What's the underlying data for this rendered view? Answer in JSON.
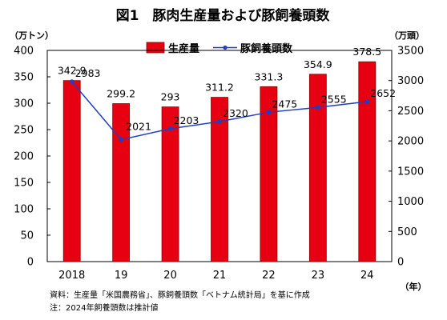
{
  "chart_data": {
    "type": "bar",
    "title": "図1　豚肉生産量および豚飼養頭数",
    "categories": [
      "2018",
      "19",
      "20",
      "21",
      "22",
      "23",
      "24"
    ],
    "series": [
      {
        "name": "生産量",
        "type": "bar",
        "axis": "left",
        "values": [
          342.9,
          299.2,
          293,
          311.2,
          331.3,
          354.9,
          378.5
        ],
        "labels": [
          "342.9",
          "299.2",
          "293",
          "311.2",
          "331.3",
          "354.9",
          "378.5"
        ]
      },
      {
        "name": "豚飼養頭数",
        "type": "line",
        "axis": "right",
        "values": [
          2983,
          2021,
          2203,
          2320,
          2475,
          2555,
          2652
        ],
        "labels": [
          "2983",
          "2021",
          "2203",
          "2320",
          "2475",
          "2555",
          "2652"
        ]
      }
    ],
    "ylabel_left": "（万トン）",
    "ylabel_right": "（万頭）",
    "xlabel": "（年）",
    "ylim_left": [
      0,
      400
    ],
    "yticks_left": [
      0,
      50,
      100,
      150,
      200,
      250,
      300,
      350,
      400
    ],
    "ylim_right": [
      0,
      3500
    ],
    "yticks_right": [
      0,
      500,
      1000,
      1500,
      2000,
      2500,
      3000,
      3500
    ],
    "legend_position": "top-center",
    "grid": false,
    "colors": {
      "bar": "#e60012",
      "bar_edge": "#8b0000",
      "line": "#1f3fbf"
    }
  },
  "notes": {
    "source": "資料：生産量「米国農務省」、豚飼養頭数「ベトナム統計局」を基に作成",
    "note": "注：2024年飼養頭数は推計値"
  }
}
